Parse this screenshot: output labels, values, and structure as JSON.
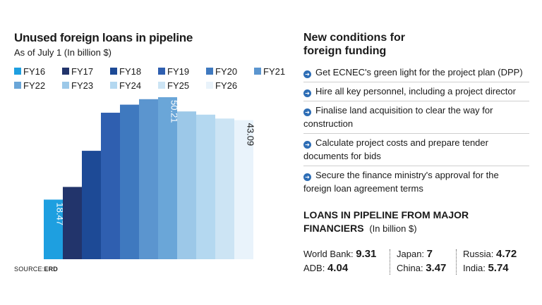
{
  "left": {
    "title": "Unused foreign loans in pipeline",
    "subtitle": "As of July 1   (In billion $)",
    "source_prefix": "SOURCE:",
    "source_name": "ERD"
  },
  "legend": [
    {
      "label": "FY16",
      "color": "#1e9fe0"
    },
    {
      "label": "FY17",
      "color": "#22346b"
    },
    {
      "label": "FY18",
      "color": "#1d4a96"
    },
    {
      "label": "FY19",
      "color": "#2f5fb0"
    },
    {
      "label": "FY20",
      "color": "#3f79bf"
    },
    {
      "label": "FY21",
      "color": "#5b95cf"
    },
    {
      "label": "FY22",
      "color": "#6aa6d8"
    },
    {
      "label": "FY23",
      "color": "#9cc8e8"
    },
    {
      "label": "FY24",
      "color": "#b4d8f0"
    },
    {
      "label": "FY25",
      "color": "#cce4f4"
    },
    {
      "label": "FY26",
      "color": "#e9f3fb"
    }
  ],
  "chart_data": {
    "type": "bar",
    "categories": [
      "FY16",
      "FY17",
      "FY18",
      "FY19",
      "FY20",
      "FY21",
      "FY22",
      "FY23",
      "FY24",
      "FY25",
      "FY26"
    ],
    "values": [
      18.47,
      22.4,
      33.6,
      45.4,
      47.9,
      49.6,
      50.21,
      45.8,
      44.8,
      43.6,
      43.09
    ],
    "labels": [
      "18.47",
      "",
      "",
      "",
      "",
      "",
      "50.21",
      "",
      "",
      "",
      "43.09"
    ],
    "colors": [
      "#1e9fe0",
      "#22346b",
      "#1d4a96",
      "#2f5fb0",
      "#3f79bf",
      "#5b95cf",
      "#6aa6d8",
      "#9cc8e8",
      "#b4d8f0",
      "#cce4f4",
      "#e9f3fb"
    ],
    "ylim": [
      0,
      50.21
    ]
  },
  "conditions": {
    "title_line1": "New conditions for",
    "title_line2": "foreign funding",
    "items": [
      "Get ECNEC's green light for the project plan (DPP)",
      "Hire all key personnel, including a project director",
      "Finalise land acquisition to clear the way for construction",
      "Calculate project costs and prepare tender documents for bids",
      "Secure the finance ministry's approval for the foreign loan agreement terms"
    ]
  },
  "loans": {
    "title_line1": "LOANS IN PIPELINE FROM MAJOR",
    "title_line2": "FINANCIERS",
    "unit": "(In billion $)",
    "entries": [
      {
        "name": "World Bank:",
        "value": "9.31"
      },
      {
        "name": "ADB:",
        "value": "4.04"
      },
      {
        "name": "Japan:",
        "value": "7"
      },
      {
        "name": "China:",
        "value": "3.47"
      },
      {
        "name": "Russia:",
        "value": "4.72"
      },
      {
        "name": "India:",
        "value": "5.74"
      }
    ]
  }
}
